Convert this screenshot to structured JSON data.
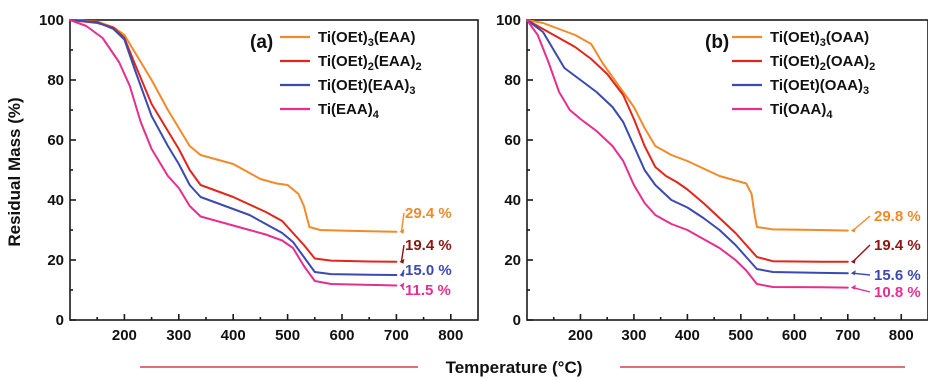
{
  "figure": {
    "ylabel": "Residual Mass (%)",
    "xlabel": "Temperature (°C)",
    "axis_rule_color": "#d9423a"
  },
  "chart_data": [
    {
      "type": "line",
      "panel_label": "(a)",
      "xlabel": "Temperature (°C)",
      "ylabel": "Residual Mass (%)",
      "xlim": [
        100,
        850
      ],
      "ylim": [
        0,
        100
      ],
      "x_ticks": [
        200,
        300,
        400,
        500,
        600,
        700,
        800
      ],
      "y_ticks": [
        0,
        20,
        40,
        60,
        80,
        100
      ],
      "grid": false,
      "legend_position": "top-right",
      "series": [
        {
          "name": "Ti(OEt)3(EAA)",
          "legend_parts": [
            {
              "t": "Ti(OEt)"
            },
            {
              "t": "3",
              "sub": true
            },
            {
              "t": "(EAA)"
            }
          ],
          "color": "#f28a2a",
          "end_label": "29.4 %",
          "label_color": "#f28a2a",
          "points": [
            [
              100,
              100
            ],
            [
              150,
              99.5
            ],
            [
              180,
              97.5
            ],
            [
              200,
              95
            ],
            [
              220,
              89
            ],
            [
              250,
              80
            ],
            [
              280,
              70
            ],
            [
              300,
              64
            ],
            [
              320,
              58
            ],
            [
              340,
              55
            ],
            [
              370,
              53.5
            ],
            [
              400,
              52
            ],
            [
              420,
              50
            ],
            [
              450,
              47
            ],
            [
              480,
              45.5
            ],
            [
              500,
              45
            ],
            [
              520,
              42
            ],
            [
              530,
              38
            ],
            [
              540,
              31
            ],
            [
              560,
              30
            ],
            [
              600,
              29.8
            ],
            [
              650,
              29.6
            ],
            [
              700,
              29.4
            ]
          ]
        },
        {
          "name": "Ti(OEt)2(EAA)2",
          "legend_parts": [
            {
              "t": "Ti(OEt)"
            },
            {
              "t": "2",
              "sub": true
            },
            {
              "t": "(EAA)"
            },
            {
              "t": "2",
              "sub": true
            }
          ],
          "color": "#e1261c",
          "end_label": "19.4 %",
          "label_color": "#8b1515",
          "points": [
            [
              100,
              100
            ],
            [
              150,
              99
            ],
            [
              180,
              97.5
            ],
            [
              200,
              94
            ],
            [
              220,
              85
            ],
            [
              250,
              72
            ],
            [
              280,
              63
            ],
            [
              300,
              57
            ],
            [
              320,
              50
            ],
            [
              340,
              45
            ],
            [
              370,
              43
            ],
            [
              400,
              41
            ],
            [
              430,
              38.5
            ],
            [
              460,
              36
            ],
            [
              490,
              33
            ],
            [
              510,
              29
            ],
            [
              530,
              25
            ],
            [
              550,
              20.5
            ],
            [
              580,
              19.8
            ],
            [
              650,
              19.5
            ],
            [
              700,
              19.4
            ]
          ]
        },
        {
          "name": "Ti(OEt)(EAA)3",
          "legend_parts": [
            {
              "t": "Ti(OEt)(EAA)"
            },
            {
              "t": "3",
              "sub": true
            }
          ],
          "color": "#3a4ab0",
          "end_label": "15.0 %",
          "label_color": "#3a4ab0",
          "points": [
            [
              100,
              100
            ],
            [
              150,
              99.3
            ],
            [
              180,
              97
            ],
            [
              200,
              93.5
            ],
            [
              220,
              83
            ],
            [
              250,
              68
            ],
            [
              280,
              58
            ],
            [
              300,
              52
            ],
            [
              320,
              45
            ],
            [
              340,
              41
            ],
            [
              370,
              39
            ],
            [
              400,
              37
            ],
            [
              430,
              35
            ],
            [
              460,
              32
            ],
            [
              490,
              29
            ],
            [
              510,
              26
            ],
            [
              530,
              21
            ],
            [
              550,
              16
            ],
            [
              580,
              15.3
            ],
            [
              650,
              15.1
            ],
            [
              700,
              15.0
            ]
          ]
        },
        {
          "name": "Ti(EAA)4",
          "legend_parts": [
            {
              "t": "Ti(EAA)"
            },
            {
              "t": "4",
              "sub": true
            }
          ],
          "color": "#e62e8f",
          "end_label": "11.5 %",
          "label_color": "#e62e8f",
          "points": [
            [
              100,
              100
            ],
            [
              130,
              98
            ],
            [
              160,
              94
            ],
            [
              190,
              86
            ],
            [
              210,
              78
            ],
            [
              230,
              66
            ],
            [
              250,
              57
            ],
            [
              280,
              48
            ],
            [
              300,
              44
            ],
            [
              320,
              38
            ],
            [
              340,
              34.5
            ],
            [
              370,
              33
            ],
            [
              400,
              31.5
            ],
            [
              430,
              30
            ],
            [
              460,
              28.5
            ],
            [
              490,
              26.5
            ],
            [
              510,
              24
            ],
            [
              530,
              18
            ],
            [
              550,
              13
            ],
            [
              580,
              12
            ],
            [
              650,
              11.7
            ],
            [
              700,
              11.5
            ]
          ]
        }
      ]
    },
    {
      "type": "line",
      "panel_label": "(b)",
      "xlabel": "Temperature (°C)",
      "ylabel": "",
      "xlim": [
        100,
        850
      ],
      "ylim": [
        0,
        100
      ],
      "x_ticks": [
        200,
        300,
        400,
        500,
        600,
        700,
        800
      ],
      "y_ticks": [
        0,
        20,
        40,
        60,
        80,
        100
      ],
      "grid": false,
      "legend_position": "top-right",
      "series": [
        {
          "name": "Ti(OEt)3(OAA)",
          "legend_parts": [
            {
              "t": "Ti(OEt)"
            },
            {
              "t": "3",
              "sub": true
            },
            {
              "t": "(OAA)"
            }
          ],
          "color": "#f28a2a",
          "end_label": "29.8 %",
          "label_color": "#f28a2a",
          "points": [
            [
              100,
              100
            ],
            [
              130,
              99
            ],
            [
              160,
              97
            ],
            [
              190,
              95
            ],
            [
              220,
              92
            ],
            [
              240,
              86
            ],
            [
              260,
              81
            ],
            [
              280,
              76
            ],
            [
              300,
              71
            ],
            [
              320,
              64
            ],
            [
              340,
              58
            ],
            [
              370,
              55
            ],
            [
              400,
              53
            ],
            [
              430,
              50.5
            ],
            [
              460,
              48
            ],
            [
              490,
              46.5
            ],
            [
              510,
              45.5
            ],
            [
              520,
              42
            ],
            [
              525,
              36
            ],
            [
              530,
              31
            ],
            [
              560,
              30.2
            ],
            [
              650,
              30
            ],
            [
              700,
              29.8
            ]
          ]
        },
        {
          "name": "Ti(OEt)2(OAA)2",
          "legend_parts": [
            {
              "t": "Ti(OEt)"
            },
            {
              "t": "2",
              "sub": true
            },
            {
              "t": "(OAA)"
            },
            {
              "t": "2",
              "sub": true
            }
          ],
          "color": "#e1261c",
          "end_label": "19.4 %",
          "label_color": "#8b1515",
          "points": [
            [
              100,
              100
            ],
            [
              130,
              97
            ],
            [
              160,
              94
            ],
            [
              190,
              91
            ],
            [
              220,
              87
            ],
            [
              250,
              82
            ],
            [
              280,
              75
            ],
            [
              300,
              67
            ],
            [
              320,
              58
            ],
            [
              340,
              51
            ],
            [
              360,
              48
            ],
            [
              380,
              46
            ],
            [
              400,
              43.5
            ],
            [
              430,
              39
            ],
            [
              460,
              34
            ],
            [
              490,
              29
            ],
            [
              510,
              25
            ],
            [
              530,
              21
            ],
            [
              560,
              19.6
            ],
            [
              650,
              19.4
            ],
            [
              700,
              19.4
            ]
          ]
        },
        {
          "name": "Ti(OEt)(OAA)3",
          "legend_parts": [
            {
              "t": "Ti(OEt)(OAA)"
            },
            {
              "t": "3",
              "sub": true
            }
          ],
          "color": "#3a4ab0",
          "end_label": "15.6 %",
          "label_color": "#3a4ab0",
          "points": [
            [
              100,
              100
            ],
            [
              130,
              96
            ],
            [
              150,
              90
            ],
            [
              170,
              84
            ],
            [
              200,
              80
            ],
            [
              230,
              76
            ],
            [
              260,
              71
            ],
            [
              280,
              66
            ],
            [
              300,
              58
            ],
            [
              320,
              50
            ],
            [
              340,
              45
            ],
            [
              370,
              40
            ],
            [
              400,
              37.5
            ],
            [
              430,
              34
            ],
            [
              460,
              30
            ],
            [
              490,
              25
            ],
            [
              510,
              21
            ],
            [
              530,
              17
            ],
            [
              560,
              16
            ],
            [
              650,
              15.7
            ],
            [
              700,
              15.6
            ]
          ]
        },
        {
          "name": "Ti(OAA)4",
          "legend_parts": [
            {
              "t": "Ti(OAA)"
            },
            {
              "t": "4",
              "sub": true
            }
          ],
          "color": "#e62e8f",
          "end_label": "10.8 %",
          "label_color": "#e62e8f",
          "points": [
            [
              100,
              100
            ],
            [
              120,
              95
            ],
            [
              140,
              86
            ],
            [
              160,
              76
            ],
            [
              180,
              70
            ],
            [
              200,
              67
            ],
            [
              230,
              63
            ],
            [
              260,
              58
            ],
            [
              280,
              53
            ],
            [
              300,
              45
            ],
            [
              320,
              39
            ],
            [
              340,
              35
            ],
            [
              370,
              32
            ],
            [
              400,
              30
            ],
            [
              430,
              27
            ],
            [
              460,
              24
            ],
            [
              490,
              20
            ],
            [
              510,
              16.5
            ],
            [
              530,
              12
            ],
            [
              560,
              11
            ],
            [
              650,
              10.9
            ],
            [
              700,
              10.8
            ]
          ]
        }
      ]
    }
  ]
}
